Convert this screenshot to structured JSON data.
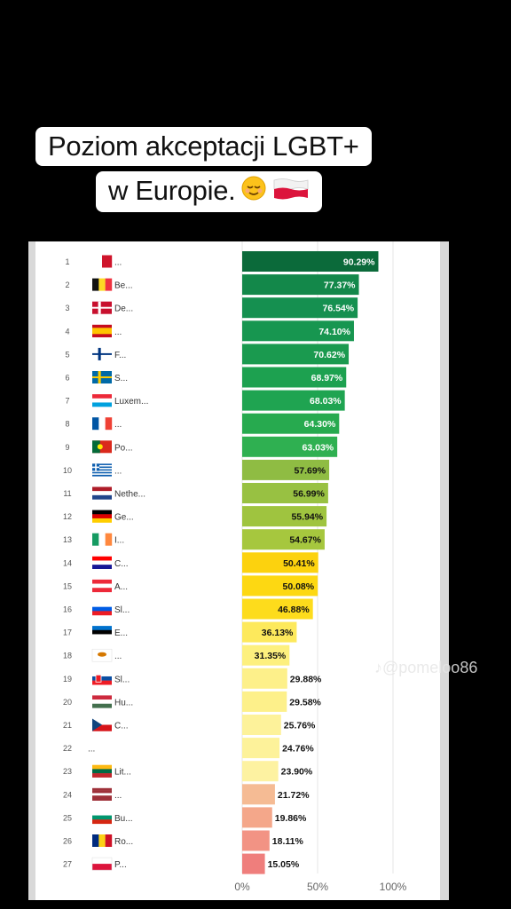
{
  "title": {
    "line1": "Poziom akceptacji LGBT+",
    "line2": "w Europie.",
    "emoji": [
      "relieved-face-emoji",
      "poland-flag-emoji"
    ]
  },
  "watermark": "@pomeloo86",
  "chart_data": {
    "type": "bar",
    "orientation": "horizontal",
    "ranks": [
      "1",
      "2",
      "3",
      "4",
      "5",
      "6",
      "7",
      "8",
      "9",
      "10",
      "11",
      "12",
      "13",
      "14",
      "15",
      "16",
      "17",
      "18",
      "19",
      "20",
      "21",
      "22",
      "23",
      "24",
      "25",
      "26",
      "27"
    ],
    "categories": [
      "...",
      "Be...",
      "De...",
      "...",
      "F...",
      "S...",
      "Luxem...",
      "...",
      "Po...",
      "...",
      "Nethe...",
      "Ge...",
      "I...",
      "C...",
      "A...",
      "Sl...",
      "E...",
      "...",
      "Sl...",
      "Hu...",
      "C...",
      "...",
      "Lit...",
      "...",
      "Bu...",
      "Ro...",
      "P..."
    ],
    "flags": [
      "malta",
      "belgium",
      "denmark",
      "spain",
      "finland",
      "sweden",
      "luxembourg",
      "france",
      "portugal",
      "greece",
      "netherlands",
      "germany",
      "ireland",
      "croatia",
      "austria",
      "slovenia",
      "estonia",
      "cyprus",
      "slovakia",
      "hungary",
      "czechia",
      "none",
      "lithuania",
      "latvia",
      "bulgaria",
      "romania",
      "poland"
    ],
    "values": [
      90.29,
      77.37,
      76.54,
      74.1,
      70.62,
      68.97,
      68.03,
      64.3,
      63.03,
      57.69,
      56.99,
      55.94,
      54.67,
      50.41,
      50.08,
      46.88,
      36.13,
      31.35,
      29.88,
      29.58,
      25.76,
      24.76,
      23.9,
      21.72,
      19.86,
      18.11,
      15.05
    ],
    "value_labels": [
      "90.29%",
      "77.37%",
      "76.54%",
      "74.10%",
      "70.62%",
      "68.97%",
      "68.03%",
      "64.30%",
      "63.03%",
      "57.69%",
      "56.99%",
      "55.94%",
      "54.67%",
      "50.41%",
      "50.08%",
      "46.88%",
      "36.13%",
      "31.35%",
      "29.88%",
      "29.58%",
      "25.76%",
      "24.76%",
      "23.90%",
      "21.72%",
      "19.86%",
      "18.11%",
      "15.05%"
    ],
    "bar_colors": [
      "#0b6a3a",
      "#13884a",
      "#159050",
      "#179650",
      "#1a9a4f",
      "#1da150",
      "#1fa451",
      "#27aa4f",
      "#2fb051",
      "#8fbc43",
      "#98c142",
      "#9fc43f",
      "#a6c73e",
      "#fcd20e",
      "#fdd812",
      "#fddc1c",
      "#fde95c",
      "#fdf07e",
      "#fdf08a",
      "#fdf08a",
      "#fdf29a",
      "#fdf29a",
      "#fdf2a1",
      "#f5bb94",
      "#f4a78a",
      "#f29384",
      "#ef7e7c"
    ],
    "xtick_labels": [
      "0%",
      "50%",
      "100%"
    ],
    "xticks": [
      0,
      50,
      100
    ],
    "xlim": [
      0,
      100
    ],
    "grid": true,
    "title": "",
    "xlabel": "",
    "ylabel": ""
  }
}
